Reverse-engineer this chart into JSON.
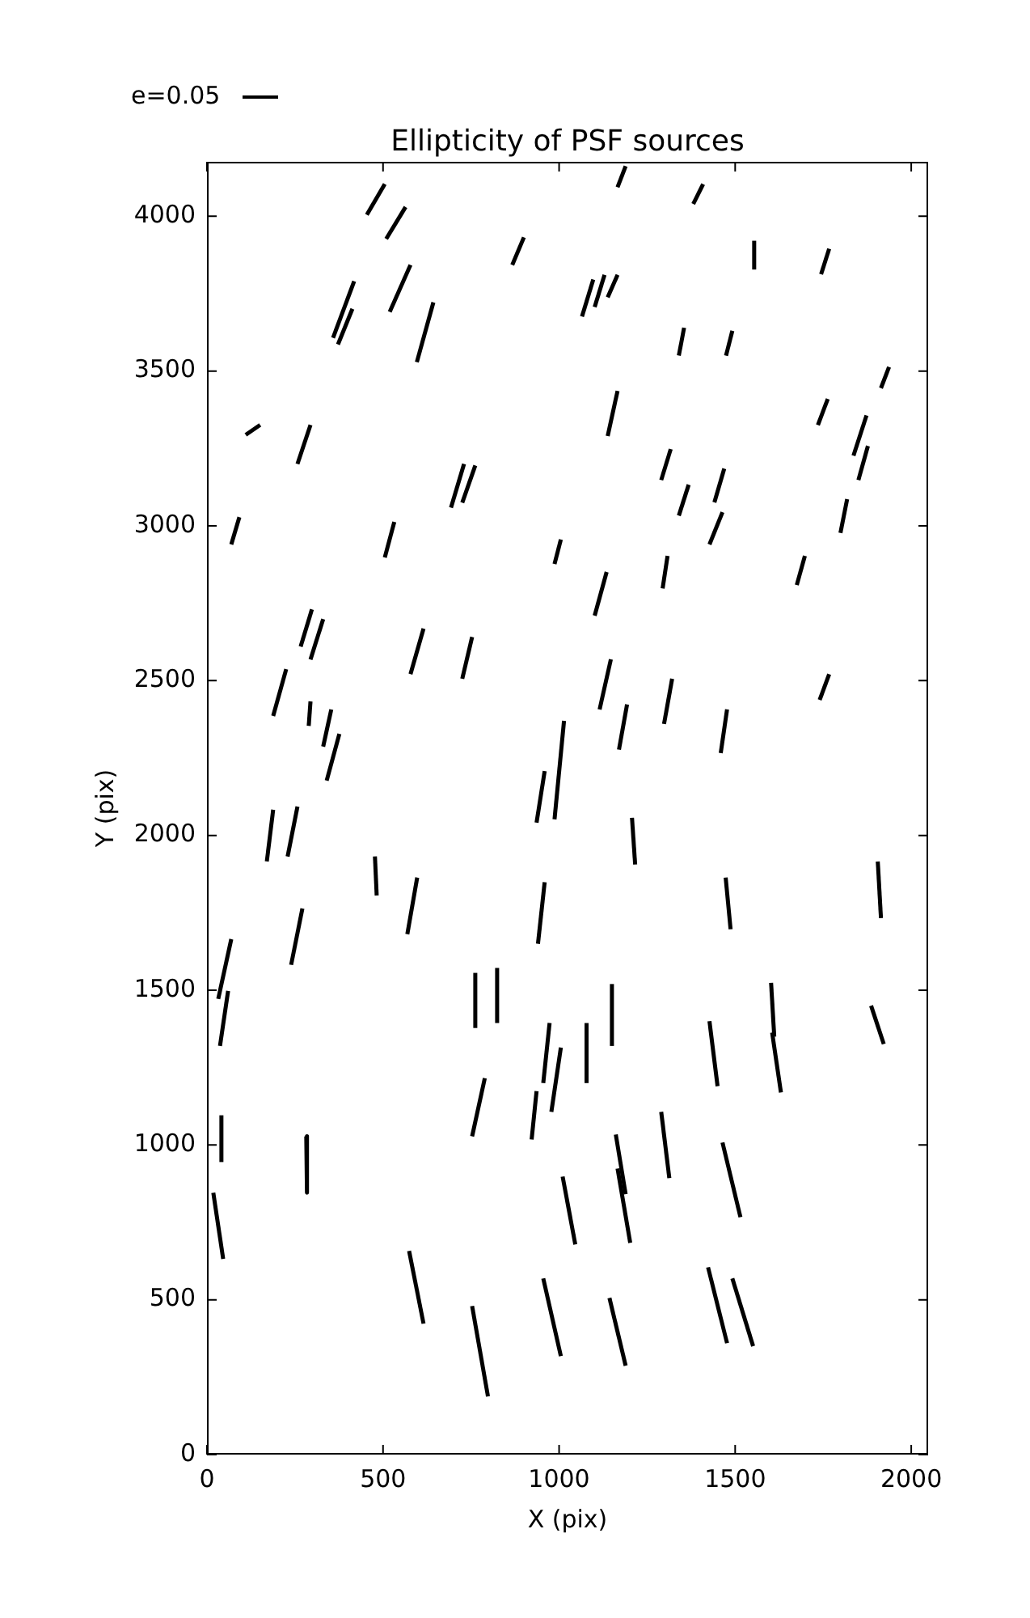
{
  "chart_data": {
    "type": "line",
    "title": "Ellipticity of PSF sources",
    "xlabel": "X (pix)",
    "ylabel": "Y (pix)",
    "annotations": [
      "e=0.05"
    ],
    "xlim": [
      0,
      2048
    ],
    "ylim": [
      0,
      4176
    ],
    "xticks": [
      0,
      500,
      1000,
      1500,
      2000
    ],
    "yticks": [
      0,
      500,
      1000,
      1500,
      2000,
      2500,
      3000,
      3500,
      4000
    ],
    "grid": false,
    "legend": false,
    "marker": "none",
    "line_style": "solid",
    "series": [
      {
        "color": "#000000",
        "x": [
          454,
          505
        ],
        "values": [
          4005,
          4104
        ]
      },
      {
        "color": "#000000",
        "x": [
          509,
          564
        ],
        "values": [
          3927,
          4030
        ]
      },
      {
        "color": "#000000",
        "x": [
          1166,
          1189
        ],
        "values": [
          4094,
          4162
        ]
      },
      {
        "color": "#000000",
        "x": [
          1381,
          1409
        ],
        "values": [
          4040,
          4104
        ]
      },
      {
        "color": "#000000",
        "x": [
          867,
          900
        ],
        "values": [
          3843,
          3932
        ]
      },
      {
        "color": "#000000",
        "x": [
          1554,
          1554
        ],
        "values": [
          3828,
          3921
        ]
      },
      {
        "color": "#000000",
        "x": [
          1744,
          1767
        ],
        "values": [
          3813,
          3895
        ]
      },
      {
        "color": "#000000",
        "x": [
          1065,
          1097
        ],
        "values": [
          3676,
          3796
        ]
      },
      {
        "color": "#000000",
        "x": [
          1101,
          1129
        ],
        "values": [
          3707,
          3811
        ]
      },
      {
        "color": "#000000",
        "x": [
          1138,
          1166
        ],
        "values": [
          3738,
          3811
        ]
      },
      {
        "color": "#000000",
        "x": [
          519,
          578
        ],
        "values": [
          3691,
          3843
        ]
      },
      {
        "color": "#000000",
        "x": [
          358,
          418
        ],
        "values": [
          3607,
          3790
        ]
      },
      {
        "color": "#000000",
        "x": [
          372,
          413
        ],
        "values": [
          3586,
          3701
        ]
      },
      {
        "color": "#000000",
        "x": [
          596,
          643
        ],
        "values": [
          3529,
          3722
        ]
      },
      {
        "color": "#000000",
        "x": [
          1340,
          1355
        ],
        "values": [
          3550,
          3640
        ]
      },
      {
        "color": "#000000",
        "x": [
          1474,
          1492
        ],
        "values": [
          3550,
          3630
        ]
      },
      {
        "color": "#000000",
        "x": [
          1914,
          1937
        ],
        "values": [
          3445,
          3513
        ]
      },
      {
        "color": "#000000",
        "x": [
          110,
          151
        ],
        "values": [
          3294,
          3326
        ]
      },
      {
        "color": "#000000",
        "x": [
          257,
          294
        ],
        "values": [
          3200,
          3326
        ]
      },
      {
        "color": "#000000",
        "x": [
          1138,
          1166
        ],
        "values": [
          3290,
          3436
        ]
      },
      {
        "color": "#000000",
        "x": [
          1735,
          1763
        ],
        "values": [
          3326,
          3410
        ]
      },
      {
        "color": "#000000",
        "x": [
          1836,
          1873
        ],
        "values": [
          3227,
          3357
        ]
      },
      {
        "color": "#000000",
        "x": [
          1850,
          1877
        ],
        "values": [
          3148,
          3258
        ]
      },
      {
        "color": "#000000",
        "x": [
          1290,
          1317
        ],
        "values": [
          3148,
          3248
        ]
      },
      {
        "color": "#000000",
        "x": [
          1441,
          1469
        ],
        "values": [
          3076,
          3185
        ]
      },
      {
        "color": "#000000",
        "x": [
          1340,
          1368
        ],
        "values": [
          3033,
          3133
        ]
      },
      {
        "color": "#000000",
        "x": [
          1427,
          1464
        ],
        "values": [
          2940,
          3044
        ]
      },
      {
        "color": "#000000",
        "x": [
          1799,
          1818
        ],
        "values": [
          2977,
          3086
        ]
      },
      {
        "color": "#000000",
        "x": [
          693,
          730
        ],
        "values": [
          3059,
          3200
        ]
      },
      {
        "color": "#000000",
        "x": [
          725,
          762
        ],
        "values": [
          3075,
          3195
        ]
      },
      {
        "color": "#000000",
        "x": [
          69,
          92
        ],
        "values": [
          2940,
          3028
        ]
      },
      {
        "color": "#000000",
        "x": [
          505,
          532
        ],
        "values": [
          2898,
          3013
        ]
      },
      {
        "color": "#000000",
        "x": [
          987,
          1005
        ],
        "values": [
          2877,
          2956
        ]
      },
      {
        "color": "#000000",
        "x": [
          1101,
          1135
        ],
        "values": [
          2710,
          2851
        ]
      },
      {
        "color": "#000000",
        "x": [
          1294,
          1308
        ],
        "values": [
          2798,
          2903
        ]
      },
      {
        "color": "#000000",
        "x": [
          1675,
          1698
        ],
        "values": [
          2809,
          2903
        ]
      },
      {
        "color": "#000000",
        "x": [
          266,
          298
        ],
        "values": [
          2610,
          2730
        ]
      },
      {
        "color": "#000000",
        "x": [
          294,
          330
        ],
        "values": [
          2568,
          2699
        ]
      },
      {
        "color": "#000000",
        "x": [
          578,
          615
        ],
        "values": [
          2521,
          2668
        ]
      },
      {
        "color": "#000000",
        "x": [
          725,
          753
        ],
        "values": [
          2506,
          2641
        ]
      },
      {
        "color": "#000000",
        "x": [
          188,
          225
        ],
        "values": [
          2386,
          2537
        ]
      },
      {
        "color": "#000000",
        "x": [
          289,
          294
        ],
        "values": [
          2354,
          2433
        ]
      },
      {
        "color": "#000000",
        "x": [
          330,
          353
        ],
        "values": [
          2287,
          2407
        ]
      },
      {
        "color": "#000000",
        "x": [
          340,
          376
        ],
        "values": [
          2177,
          2328
        ]
      },
      {
        "color": "#000000",
        "x": [
          1115,
          1147
        ],
        "values": [
          2407,
          2569
        ]
      },
      {
        "color": "#000000",
        "x": [
          1170,
          1193
        ],
        "values": [
          2277,
          2423
        ]
      },
      {
        "color": "#000000",
        "x": [
          1298,
          1321
        ],
        "values": [
          2360,
          2506
        ]
      },
      {
        "color": "#000000",
        "x": [
          1459,
          1477
        ],
        "values": [
          2266,
          2407
        ]
      },
      {
        "color": "#000000",
        "x": [
          1740,
          1767
        ],
        "values": [
          2438,
          2521
        ]
      },
      {
        "color": "#000000",
        "x": [
          987,
          1014
        ],
        "values": [
          2052,
          2370
        ]
      },
      {
        "color": "#000000",
        "x": [
          936,
          959
        ],
        "values": [
          2041,
          2208
        ]
      },
      {
        "color": "#000000",
        "x": [
          170,
          188
        ],
        "values": [
          1916,
          2083
        ]
      },
      {
        "color": "#000000",
        "x": [
          229,
          257
        ],
        "values": [
          1932,
          2093
        ]
      },
      {
        "color": "#000000",
        "x": [
          1207,
          1216
        ],
        "values": [
          2057,
          1906
        ]
      },
      {
        "color": "#000000",
        "x": [
          477,
          482
        ],
        "values": [
          1932,
          1806
        ]
      },
      {
        "color": "#000000",
        "x": [
          569,
          597
        ],
        "values": [
          1681,
          1864
        ]
      },
      {
        "color": "#000000",
        "x": [
          940,
          959
        ],
        "values": [
          1650,
          1849
        ]
      },
      {
        "color": "#000000",
        "x": [
          1473,
          1487
        ],
        "values": [
          1864,
          1697
        ]
      },
      {
        "color": "#000000",
        "x": [
          1905,
          1914
        ],
        "values": [
          1916,
          1733
        ]
      },
      {
        "color": "#000000",
        "x": [
          239,
          271
        ],
        "values": [
          1582,
          1764
        ]
      },
      {
        "color": "#000000",
        "x": [
          32,
          69
        ],
        "values": [
          1472,
          1665
        ]
      },
      {
        "color": "#000000",
        "x": [
          37,
          60
        ],
        "values": [
          1320,
          1498
        ]
      },
      {
        "color": "#000000",
        "x": [
          762,
          762
        ],
        "values": [
          1378,
          1556
        ]
      },
      {
        "color": "#000000",
        "x": [
          824,
          824
        ],
        "values": [
          1394,
          1572
        ]
      },
      {
        "color": "#000000",
        "x": [
          1150,
          1150
        ],
        "values": [
          1320,
          1520
        ]
      },
      {
        "color": "#000000",
        "x": [
          1602,
          1611
        ],
        "values": [
          1524,
          1350
        ]
      },
      {
        "color": "#000000",
        "x": [
          1605,
          1630
        ],
        "values": [
          1363,
          1170
        ]
      },
      {
        "color": "#000000",
        "x": [
          1886,
          1922
        ],
        "values": [
          1450,
          1326
        ]
      },
      {
        "color": "#000000",
        "x": [
          1427,
          1450
        ],
        "values": [
          1400,
          1190
        ]
      },
      {
        "color": "#000000",
        "x": [
          1078,
          1078
        ],
        "values": [
          1200,
          1394
        ]
      },
      {
        "color": "#000000",
        "x": [
          955,
          973
        ],
        "values": [
          1200,
          1394
        ]
      },
      {
        "color": "#000000",
        "x": [
          978,
          1005
        ],
        "values": [
          1107,
          1315
        ]
      },
      {
        "color": "#000000",
        "x": [
          753,
          789
        ],
        "values": [
          1028,
          1216
        ]
      },
      {
        "color": "#000000",
        "x": [
          922,
          936
        ],
        "values": [
          1018,
          1174
        ]
      },
      {
        "color": "#000000",
        "x": [
          41,
          41
        ],
        "values": [
          945,
          1096
        ]
      },
      {
        "color": "#000000",
        "x": [
          282,
          284
        ],
        "values": [
          1028,
          846
        ]
      },
      {
        "color": "#000000",
        "x": [
          18,
          46
        ],
        "values": [
          846,
          632
        ]
      },
      {
        "color": "#000000",
        "x": [
          1290,
          1313
        ],
        "values": [
          1107,
          893
        ]
      },
      {
        "color": "#000000",
        "x": [
          1161,
          1189
        ],
        "values": [
          1034,
          841
        ]
      },
      {
        "color": "#000000",
        "x": [
          1166,
          1202
        ],
        "values": [
          924,
          684
        ]
      },
      {
        "color": "#000000",
        "x": [
          1464,
          1515
        ],
        "values": [
          1008,
          767
        ]
      },
      {
        "color": "#000000",
        "x": [
          1010,
          1046
        ],
        "values": [
          898,
          679
        ]
      },
      {
        "color": "#000000",
        "x": [
          574,
          615
        ],
        "values": [
          658,
          423
        ]
      },
      {
        "color": "#000000",
        "x": [
          753,
          798
        ],
        "values": [
          480,
          188
        ]
      },
      {
        "color": "#000000",
        "x": [
          955,
          1005
        ],
        "values": [
          569,
          318
        ]
      },
      {
        "color": "#000000",
        "x": [
          1143,
          1189
        ],
        "values": [
          506,
          287
        ]
      },
      {
        "color": "#000000",
        "x": [
          1423,
          1477
        ],
        "values": [
          605,
          360
        ]
      },
      {
        "color": "#000000",
        "x": [
          1492,
          1551
        ],
        "values": [
          569,
          350
        ]
      }
    ]
  }
}
